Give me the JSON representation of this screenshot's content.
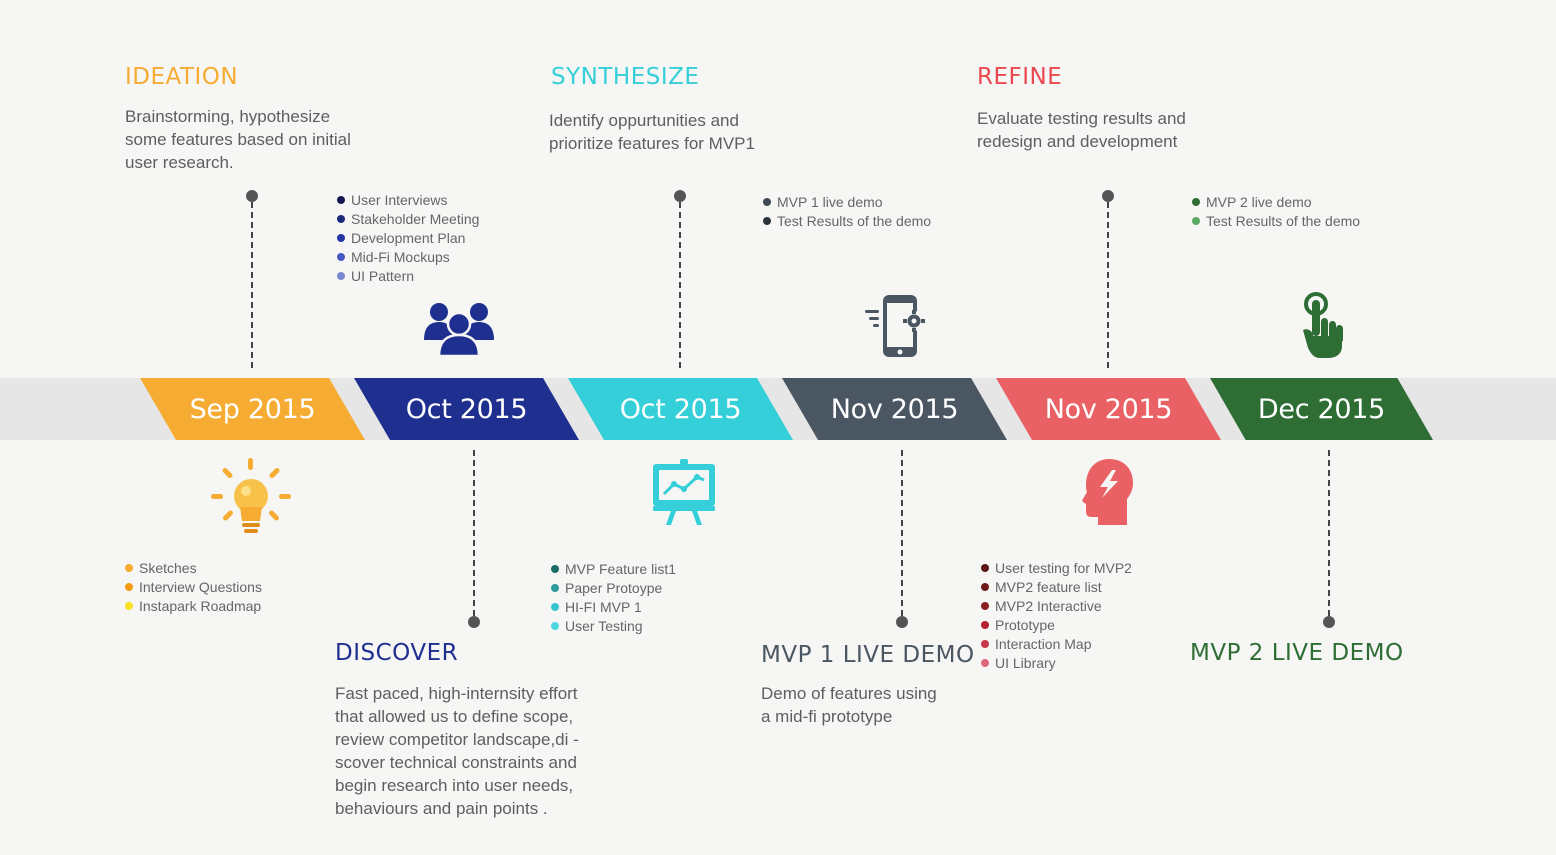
{
  "timeline": [
    {
      "label": "Sep 2015",
      "color": "#f6ac32"
    },
    {
      "label": "Oct 2015",
      "color": "#1f2f8f"
    },
    {
      "label": "Oct 2015",
      "color": "#35cfd9"
    },
    {
      "label": "Nov 2015",
      "color": "#4a5662"
    },
    {
      "label": "Nov 2015",
      "color": "#e96164"
    },
    {
      "label": "Dec 2015",
      "color": "#2e6e35"
    }
  ],
  "phases": {
    "ideation": {
      "title": "IDEATION",
      "color": "#f6ac32",
      "desc": "Brainstorming, hypothesize\nsome features based on initial\nuser research.",
      "items": [
        {
          "text": "Sketches",
          "color": "#f6ac32"
        },
        {
          "text": "Interview Questions",
          "color": "#f39c12"
        },
        {
          "text": "Instapark Roadmap",
          "color": "#f7e022"
        }
      ]
    },
    "discover": {
      "title": "DISCOVER",
      "color": "#1f2f8f",
      "desc": "Fast paced, high-internsity effort\nthat allowed us to define scope,\nreview competitor landscape,di          -\nscover technical constraints and\nbegin research into user needs,\nbehaviours and  pain points      .",
      "items": [
        {
          "text": "User Interviews",
          "color": "#141a4f"
        },
        {
          "text": "Stakeholder Meeting",
          "color": "#1b2a78"
        },
        {
          "text": "Development Plan",
          "color": "#2236a6"
        },
        {
          "text": "Mid-Fi Mockups",
          "color": "#4558c2"
        },
        {
          "text": "UI Pattern",
          "color": "#7a89d2"
        }
      ]
    },
    "synthesize": {
      "title": "SYNTHESIZE",
      "color": "#35cfd9",
      "desc": "Identify oppurtunities and\nprioritize features for MVP1",
      "items": [
        {
          "text": "MVP Feature list1",
          "color": "#1a6a66"
        },
        {
          "text": "Paper Protoype",
          "color": "#2a9a9a"
        },
        {
          "text": "HI-FI MVP 1",
          "color": "#35c4cf"
        },
        {
          "text": "User Testing",
          "color": "#4fd6df"
        }
      ]
    },
    "mvp1": {
      "title": "MVP 1 LIVE DEMO",
      "color": "#4a5662",
      "desc": "Demo of features using\na mid-fi prototype",
      "items": [
        {
          "text": "MVP 1 live demo",
          "color": "#3d4954"
        },
        {
          "text": "Test Results of the demo",
          "color": "#2c333a"
        }
      ]
    },
    "refine": {
      "title": "REFINE",
      "color": "#e9494f",
      "desc": "Evaluate testing results and\nredesign and development",
      "items": [
        {
          "text": "User testing for MVP2",
          "color": "#5c1414"
        },
        {
          "text": "MVP2 feature list",
          "color": "#6e1a1a"
        },
        {
          "text": "MVP2 Interactive",
          "color": "#8a1f24"
        },
        {
          "text": "Prototype",
          "color": "#b8202e"
        },
        {
          "text": "Interaction Map",
          "color": "#c9354a"
        },
        {
          "text": "UI Library",
          "color": "#e0677a"
        }
      ]
    },
    "mvp2": {
      "title": "MVP 2 LIVE DEMO",
      "color": "#2e6e35",
      "items": [
        {
          "text": "MVP 2 live demo",
          "color": "#2e6e35"
        },
        {
          "text": "Test Results of the demo",
          "color": "#5aaa62"
        }
      ]
    }
  },
  "icons": {
    "ideation": "lightbulb-icon",
    "discover": "team-icon",
    "synthesize": "presentation-chart-icon",
    "mvp1": "mobile-settings-icon",
    "refine": "brain-idea-icon",
    "mvp2": "touch-hand-icon"
  }
}
